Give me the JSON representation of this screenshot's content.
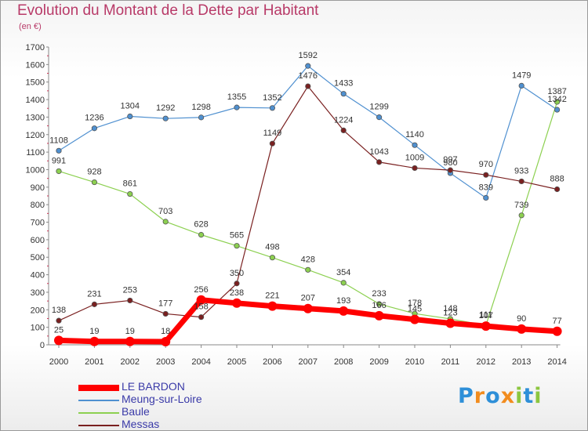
{
  "title": "Evolution du Montant de la Dette par Habitant",
  "unit": "(en €)",
  "logo": [
    "P",
    "r",
    "o",
    "x",
    "i",
    "t",
    "i"
  ],
  "colors": {
    "title": "#b83a68",
    "axis_text": "#333333",
    "legend_text": "#3a3aa8",
    "logo": [
      "#2e8fd8",
      "#f28c1e",
      "#2e8fd8",
      "#f28c1e",
      "#8cc63f",
      "#2e8fd8",
      "#8cc63f"
    ]
  },
  "chart_data": {
    "type": "line",
    "title": "Evolution du Montant de la Dette par Habitant",
    "ylabel": "(en €)",
    "xlabel": "",
    "categories": [
      "2000",
      "2001",
      "2002",
      "2003",
      "2004",
      "2005",
      "2006",
      "2007",
      "2008",
      "2009",
      "2010",
      "2011",
      "2012",
      "2013",
      "2014"
    ],
    "ylim": [
      0,
      1700
    ],
    "yticks": [
      0,
      100,
      200,
      300,
      400,
      500,
      600,
      700,
      800,
      900,
      1000,
      1100,
      1200,
      1300,
      1400,
      1500,
      1600,
      1700
    ],
    "grid": false,
    "legend_position": "bottom-left",
    "series": [
      {
        "name": "LE BARDON",
        "color": "#ff0000",
        "values": [
          25,
          19,
          19,
          18,
          256,
          238,
          221,
          207,
          193,
          166,
          145,
          123,
          107,
          90,
          77
        ],
        "labels": [
          "25",
          "19",
          "19",
          "18",
          "256",
          "238",
          "221",
          "207",
          "193",
          "166",
          "145",
          "123",
          "107",
          "90",
          "77"
        ]
      },
      {
        "name": "Meung-sur-Loire",
        "color": "#4f90d0",
        "values": [
          1108,
          1236,
          1304,
          1292,
          1298,
          1355,
          1352,
          1592,
          1433,
          1299,
          1140,
          980,
          839,
          1479,
          1342
        ],
        "labels": [
          "1108",
          "1236",
          "1304",
          "1292",
          "1298",
          "1355",
          "1352",
          "1592",
          "1433",
          "1299",
          "1140",
          "980",
          "839",
          "1479",
          "1342"
        ]
      },
      {
        "name": "Baule",
        "color": "#8cd050",
        "values": [
          991,
          928,
          861,
          703,
          628,
          565,
          498,
          428,
          354,
          233,
          178,
          148,
          111,
          739,
          1387
        ],
        "labels": [
          "991",
          "928",
          "861",
          "703",
          "628",
          "565",
          "498",
          "428",
          "354",
          "233",
          "178",
          "148",
          "111",
          "739",
          "1387"
        ]
      },
      {
        "name": "Messas",
        "color": "#7a2020",
        "values": [
          138,
          231,
          253,
          177,
          158,
          350,
          1149,
          1476,
          1224,
          1043,
          1009,
          997,
          970,
          933,
          888
        ],
        "labels": [
          "138",
          "231",
          "253",
          "177",
          "158",
          "350",
          "1149",
          "1476",
          "1224",
          "1043",
          "1009",
          "997",
          "970",
          "933",
          "888"
        ]
      }
    ]
  }
}
